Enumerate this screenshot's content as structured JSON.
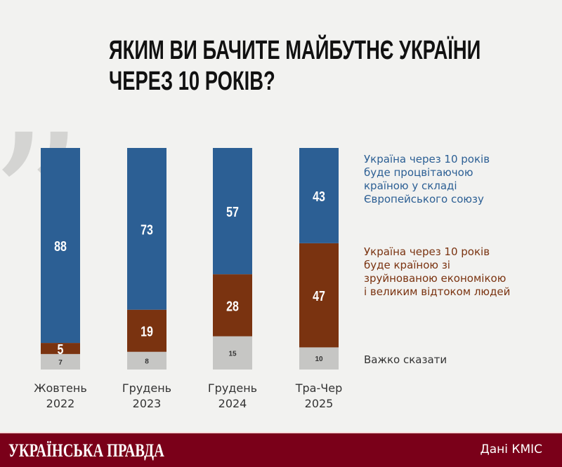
{
  "chart_data": {
    "type": "bar",
    "stacked": true,
    "title": "ЯКИМ ВИ БАЧИТЕ МАЙБУТНЄ УКРАЇНИ ЧЕРЕЗ 10 РОКІВ?",
    "categories": [
      [
        "Жовтень",
        "2022"
      ],
      [
        "Грудень",
        "2023"
      ],
      [
        "Грудень",
        "2024"
      ],
      [
        "Тра-Чер",
        "2025"
      ]
    ],
    "series": [
      {
        "name": "Україна через 10 років буде процвітаючою країною у складі Європейського союзу",
        "color": "#2c5f94",
        "values": [
          88,
          73,
          57,
          43
        ]
      },
      {
        "name": "Україна через 10 років буде країною зі зруйнованою економікою і великим відтоком людей",
        "color": "#7a3310",
        "values": [
          5,
          19,
          28,
          47
        ]
      },
      {
        "name": "Важко сказати",
        "color": "#c6c6c4",
        "values": [
          7,
          8,
          15,
          10
        ]
      }
    ],
    "ylim": [
      0,
      100
    ],
    "legend": "right",
    "grid": false
  },
  "header": {
    "title_line1": "ЯКИМ ВИ БАЧИТЕ МАЙБУТНЄ УКРАЇНИ",
    "title_line2": "ЧЕРЕЗ 10 РОКІВ?"
  },
  "legend": {
    "eu": [
      "Україна через 10 років",
      "буде процвітаючою",
      "країною у складі",
      "Європейського союзу"
    ],
    "ruin": [
      "Україна через 10 років",
      "буде країною зі",
      "зруйнованою економікою",
      "і великим відтоком людей"
    ],
    "unsure": "Важко сказати"
  },
  "footer": {
    "brand": "УКРАЇНСЬКА ПРАВДА",
    "source": "Дані КМІС"
  }
}
